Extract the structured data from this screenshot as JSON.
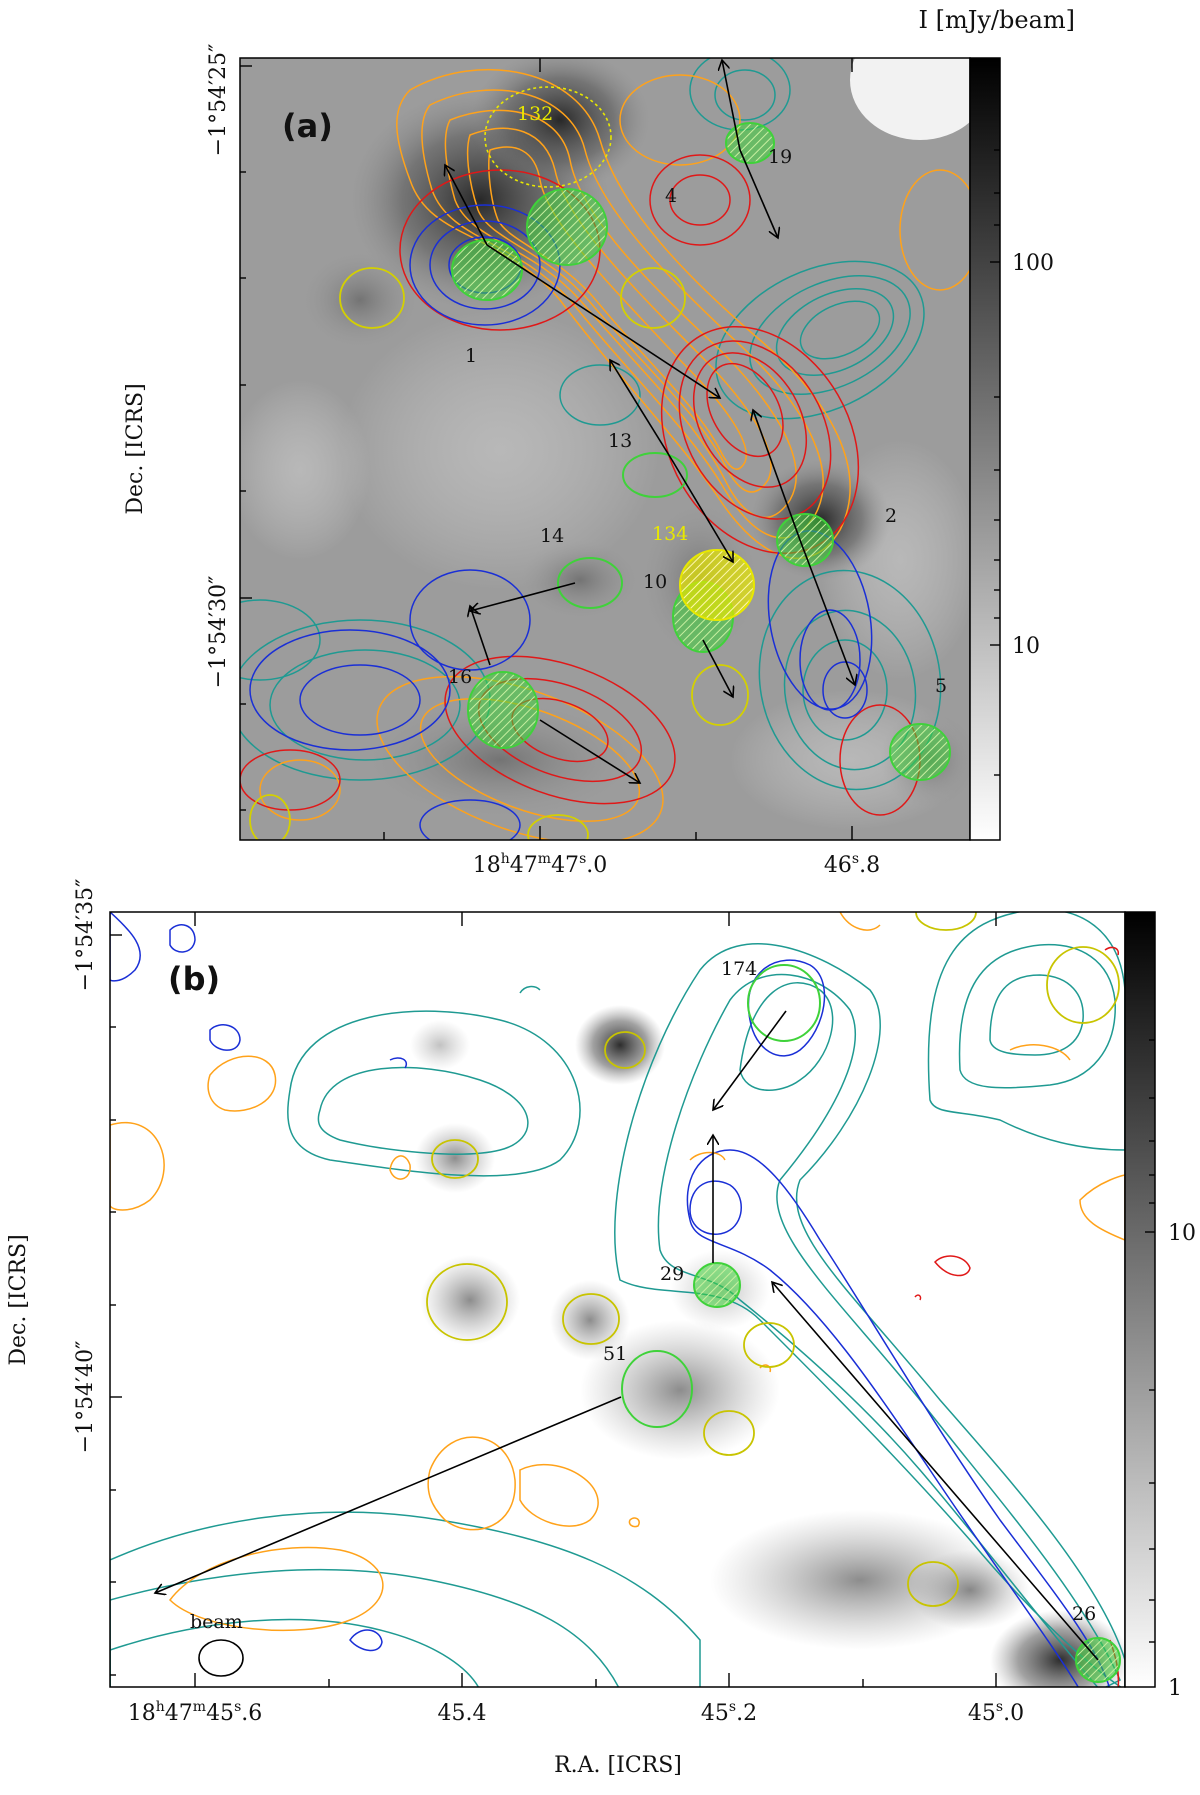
{
  "panel_a": {
    "label": "(a)",
    "colorbar_title": "I [mJy/beam]",
    "colorbar_ticks": [
      "100",
      "10"
    ],
    "dec_ticks": [
      "−1°54′25″",
      "−1°54′30″"
    ],
    "ra_ticks": [
      {
        "base": "18",
        "h": "h",
        "mid": "47",
        "m": "m",
        "sec": "47",
        "s": "s",
        "frac": ".0"
      },
      {
        "base": "46",
        "s": "s",
        "frac": ".8"
      }
    ],
    "ylabel": "Dec. [ICRS]",
    "sources": [
      {
        "id": "132",
        "color": "#e8e800"
      },
      {
        "id": "19",
        "color": "#111111"
      },
      {
        "id": "4",
        "color": "#111111"
      },
      {
        "id": "1",
        "color": "#111111"
      },
      {
        "id": "13",
        "color": "#111111"
      },
      {
        "id": "2",
        "color": "#111111"
      },
      {
        "id": "134",
        "color": "#e8e800"
      },
      {
        "id": "14",
        "color": "#111111"
      },
      {
        "id": "10",
        "color": "#111111"
      },
      {
        "id": "16",
        "color": "#111111"
      },
      {
        "id": "5",
        "color": "#111111"
      }
    ]
  },
  "panel_b": {
    "label": "(b)",
    "colorbar_ticks": [
      "10",
      "1"
    ],
    "dec_ticks": [
      "−1°54′35″",
      "−1°54′40″"
    ],
    "ra_ticks": [
      {
        "base": "18",
        "h": "h",
        "mid": "47",
        "m": "m",
        "sec": "45",
        "s": "s",
        "frac": ".6"
      },
      {
        "base": "45.4"
      },
      {
        "base": "45",
        "s": "s",
        "frac": ".2"
      },
      {
        "base": "45",
        "s": "s",
        "frac": ".0"
      }
    ],
    "ylabel": "Dec. [ICRS]",
    "xlabel": "R.A. [ICRS]",
    "beam_label": "beam",
    "sources": [
      {
        "id": "174"
      },
      {
        "id": "29"
      },
      {
        "id": "51"
      },
      {
        "id": "26"
      }
    ]
  },
  "colors": {
    "blue": "#1a2fd6",
    "teal": "#1f9a92",
    "orange": "#ffa21a",
    "red": "#e01818",
    "green": "#3fd23a",
    "yellow": "#c8c400"
  }
}
